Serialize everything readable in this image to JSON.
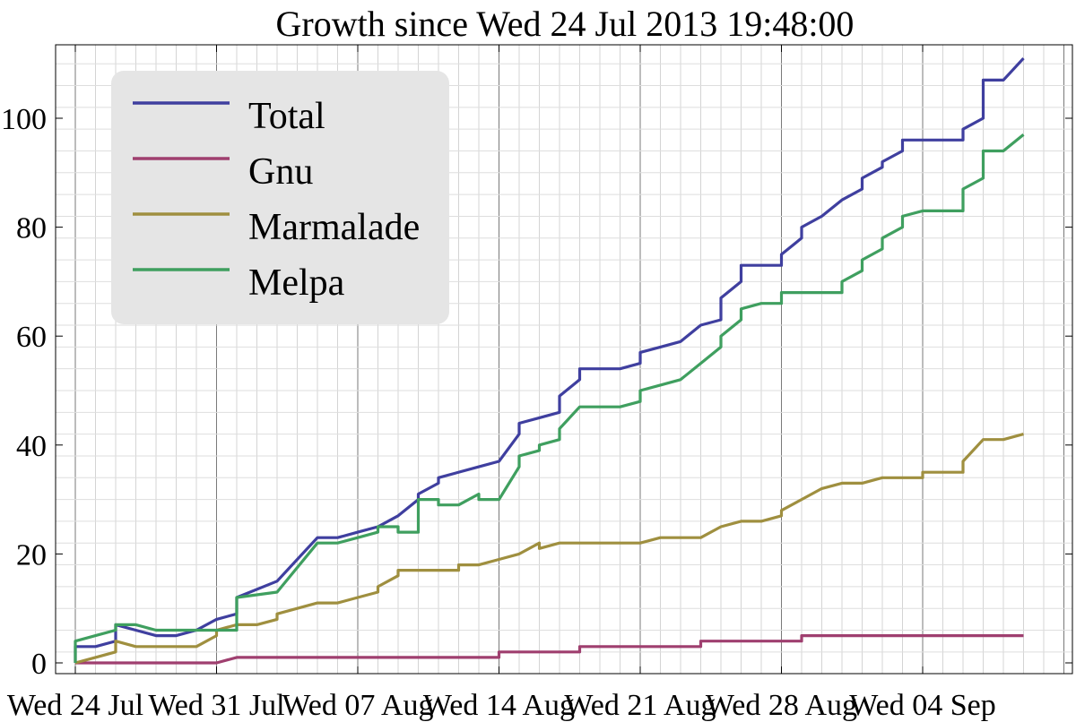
{
  "chart_data": {
    "type": "line",
    "title": "Growth since Wed 24 Jul 2013 19:48:00",
    "xlabel": "",
    "ylabel": "",
    "x_unit": "date",
    "x_range": [
      "2013-07-24",
      "2013-09-10"
    ],
    "ylim": [
      -2,
      112
    ],
    "x_tick_labels": [
      "Wed 24 Jul",
      "Wed 31 Jul",
      "Wed 07 Aug",
      "Wed 14 Aug",
      "Wed 21 Aug",
      "Wed 28 Aug",
      "Wed 04 Sep"
    ],
    "x_tick_dates": [
      "2013-07-24",
      "2013-07-31",
      "2013-08-07",
      "2013-08-14",
      "2013-08-21",
      "2013-08-28",
      "2013-09-04"
    ],
    "y_ticks": [
      0,
      20,
      40,
      60,
      80,
      100
    ],
    "grid": true,
    "legend_position": "top-left",
    "series": [
      {
        "name": "Total",
        "color": "#3f3f9f",
        "points": [
          [
            "2013-07-24",
            0
          ],
          [
            "2013-07-24",
            3
          ],
          [
            "2013-07-25",
            3
          ],
          [
            "2013-07-26",
            4
          ],
          [
            "2013-07-26",
            6
          ],
          [
            "2013-07-26",
            7
          ],
          [
            "2013-07-27",
            6
          ],
          [
            "2013-07-28",
            5
          ],
          [
            "2013-07-29",
            5
          ],
          [
            "2013-07-30",
            6
          ],
          [
            "2013-07-31",
            8
          ],
          [
            "2013-08-01",
            9
          ],
          [
            "2013-08-01",
            12
          ],
          [
            "2013-08-03",
            15
          ],
          [
            "2013-08-05",
            23
          ],
          [
            "2013-08-06",
            23
          ],
          [
            "2013-08-07",
            24
          ],
          [
            "2013-08-08",
            25
          ],
          [
            "2013-08-09",
            27
          ],
          [
            "2013-08-10",
            30
          ],
          [
            "2013-08-10",
            31
          ],
          [
            "2013-08-11",
            33
          ],
          [
            "2013-08-11",
            34
          ],
          [
            "2013-08-13",
            36
          ],
          [
            "2013-08-14",
            37
          ],
          [
            "2013-08-15",
            42
          ],
          [
            "2013-08-15",
            44
          ],
          [
            "2013-08-16",
            45
          ],
          [
            "2013-08-17",
            46
          ],
          [
            "2013-08-17",
            49
          ],
          [
            "2013-08-18",
            52
          ],
          [
            "2013-08-18",
            54
          ],
          [
            "2013-08-20",
            54
          ],
          [
            "2013-08-21",
            55
          ],
          [
            "2013-08-21",
            57
          ],
          [
            "2013-08-22",
            58
          ],
          [
            "2013-08-23",
            59
          ],
          [
            "2013-08-24",
            62
          ],
          [
            "2013-08-25",
            63
          ],
          [
            "2013-08-25",
            67
          ],
          [
            "2013-08-26",
            70
          ],
          [
            "2013-08-26",
            73
          ],
          [
            "2013-08-28",
            73
          ],
          [
            "2013-08-28",
            75
          ],
          [
            "2013-08-29",
            78
          ],
          [
            "2013-08-29",
            80
          ],
          [
            "2013-08-30",
            82
          ],
          [
            "2013-08-31",
            85
          ],
          [
            "2013-09-01",
            87
          ],
          [
            "2013-09-01",
            89
          ],
          [
            "2013-09-02",
            91
          ],
          [
            "2013-09-02",
            92
          ],
          [
            "2013-09-03",
            94
          ],
          [
            "2013-09-03",
            96
          ],
          [
            "2013-09-06",
            96
          ],
          [
            "2013-09-06",
            98
          ],
          [
            "2013-09-07",
            100
          ],
          [
            "2013-09-07",
            103
          ],
          [
            "2013-09-07",
            107
          ],
          [
            "2013-09-08",
            107
          ],
          [
            "2013-09-09",
            111
          ]
        ]
      },
      {
        "name": "Gnu",
        "color": "#9f3f6f",
        "points": [
          [
            "2013-07-24",
            0
          ],
          [
            "2013-07-31",
            0
          ],
          [
            "2013-08-01",
            1
          ],
          [
            "2013-08-14",
            1
          ],
          [
            "2013-08-14",
            2
          ],
          [
            "2013-08-18",
            2
          ],
          [
            "2013-08-18",
            3
          ],
          [
            "2013-08-24",
            3
          ],
          [
            "2013-08-24",
            4
          ],
          [
            "2013-08-29",
            4
          ],
          [
            "2013-08-29",
            5
          ],
          [
            "2013-09-09",
            5
          ]
        ]
      },
      {
        "name": "Marmalade",
        "color": "#9f8f3f",
        "points": [
          [
            "2013-07-24",
            0
          ],
          [
            "2013-07-25",
            1
          ],
          [
            "2013-07-26",
            2
          ],
          [
            "2013-07-26",
            4
          ],
          [
            "2013-07-27",
            3
          ],
          [
            "2013-07-30",
            3
          ],
          [
            "2013-07-31",
            5
          ],
          [
            "2013-07-31",
            6
          ],
          [
            "2013-08-01",
            7
          ],
          [
            "2013-08-02",
            7
          ],
          [
            "2013-08-03",
            8
          ],
          [
            "2013-08-03",
            9
          ],
          [
            "2013-08-05",
            11
          ],
          [
            "2013-08-06",
            11
          ],
          [
            "2013-08-07",
            12
          ],
          [
            "2013-08-08",
            13
          ],
          [
            "2013-08-08",
            14
          ],
          [
            "2013-08-09",
            16
          ],
          [
            "2013-08-09",
            17
          ],
          [
            "2013-08-12",
            17
          ],
          [
            "2013-08-12",
            18
          ],
          [
            "2013-08-13",
            18
          ],
          [
            "2013-08-14",
            19
          ],
          [
            "2013-08-15",
            20
          ],
          [
            "2013-08-16",
            22
          ],
          [
            "2013-08-16",
            21
          ],
          [
            "2013-08-17",
            22
          ],
          [
            "2013-08-20",
            22
          ],
          [
            "2013-08-21",
            22
          ],
          [
            "2013-08-22",
            23
          ],
          [
            "2013-08-24",
            23
          ],
          [
            "2013-08-25",
            25
          ],
          [
            "2013-08-25",
            25
          ],
          [
            "2013-08-26",
            26
          ],
          [
            "2013-08-27",
            26
          ],
          [
            "2013-08-28",
            27
          ],
          [
            "2013-08-28",
            28
          ],
          [
            "2013-08-29",
            30
          ],
          [
            "2013-08-30",
            32
          ],
          [
            "2013-08-31",
            33
          ],
          [
            "2013-09-01",
            33
          ],
          [
            "2013-09-02",
            34
          ],
          [
            "2013-09-04",
            34
          ],
          [
            "2013-09-04",
            35
          ],
          [
            "2013-09-06",
            35
          ],
          [
            "2013-09-06",
            37
          ],
          [
            "2013-09-07",
            41
          ],
          [
            "2013-09-08",
            41
          ],
          [
            "2013-09-09",
            42
          ]
        ]
      },
      {
        "name": "Melpa",
        "color": "#3f9f5f",
        "points": [
          [
            "2013-07-24",
            0
          ],
          [
            "2013-07-24",
            4
          ],
          [
            "2013-07-25",
            5
          ],
          [
            "2013-07-26",
            6
          ],
          [
            "2013-07-26",
            7
          ],
          [
            "2013-07-27",
            7
          ],
          [
            "2013-07-28",
            6
          ],
          [
            "2013-07-30",
            6
          ],
          [
            "2013-08-01",
            6
          ],
          [
            "2013-08-01",
            9
          ],
          [
            "2013-08-01",
            12
          ],
          [
            "2013-08-03",
            13
          ],
          [
            "2013-08-05",
            22
          ],
          [
            "2013-08-06",
            22
          ],
          [
            "2013-08-07",
            23
          ],
          [
            "2013-08-08",
            24
          ],
          [
            "2013-08-08",
            25
          ],
          [
            "2013-08-09",
            25
          ],
          [
            "2013-08-09",
            24
          ],
          [
            "2013-08-10",
            24
          ],
          [
            "2013-08-10",
            28
          ],
          [
            "2013-08-10",
            30
          ],
          [
            "2013-08-11",
            30
          ],
          [
            "2013-08-11",
            29
          ],
          [
            "2013-08-12",
            29
          ],
          [
            "2013-08-13",
            31
          ],
          [
            "2013-08-13",
            30
          ],
          [
            "2013-08-14",
            30
          ],
          [
            "2013-08-15",
            36
          ],
          [
            "2013-08-15",
            38
          ],
          [
            "2013-08-16",
            39
          ],
          [
            "2013-08-16",
            40
          ],
          [
            "2013-08-17",
            41
          ],
          [
            "2013-08-17",
            43
          ],
          [
            "2013-08-18",
            47
          ],
          [
            "2013-08-20",
            47
          ],
          [
            "2013-08-21",
            48
          ],
          [
            "2013-08-21",
            50
          ],
          [
            "2013-08-22",
            51
          ],
          [
            "2013-08-23",
            52
          ],
          [
            "2013-08-24",
            55
          ],
          [
            "2013-08-25",
            58
          ],
          [
            "2013-08-25",
            60
          ],
          [
            "2013-08-26",
            63
          ],
          [
            "2013-08-26",
            65
          ],
          [
            "2013-08-27",
            66
          ],
          [
            "2013-08-28",
            66
          ],
          [
            "2013-08-28",
            68
          ],
          [
            "2013-08-31",
            68
          ],
          [
            "2013-08-31",
            70
          ],
          [
            "2013-09-01",
            72
          ],
          [
            "2013-09-01",
            74
          ],
          [
            "2013-09-02",
            76
          ],
          [
            "2013-09-02",
            78
          ],
          [
            "2013-09-03",
            80
          ],
          [
            "2013-09-03",
            82
          ],
          [
            "2013-09-04",
            83
          ],
          [
            "2013-09-06",
            83
          ],
          [
            "2013-09-06",
            84
          ],
          [
            "2013-09-06",
            87
          ],
          [
            "2013-09-07",
            89
          ],
          [
            "2013-09-07",
            94
          ],
          [
            "2013-09-08",
            94
          ],
          [
            "2013-09-09",
            97
          ]
        ]
      }
    ]
  }
}
